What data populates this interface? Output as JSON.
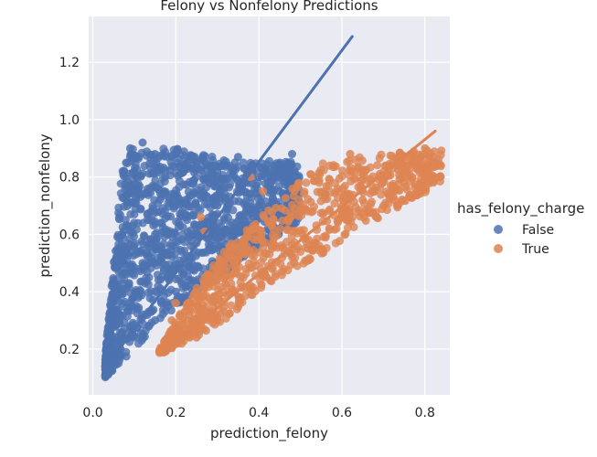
{
  "chart_data": {
    "type": "scatter",
    "title": "Felony vs Nonfelony Predictions",
    "xlabel": "prediction_felony",
    "ylabel": "prediction_nonfelony",
    "xlim": [
      -0.01,
      0.86
    ],
    "ylim": [
      0.04,
      1.36
    ],
    "xticks": [
      0.0,
      0.2,
      0.4,
      0.6,
      0.8
    ],
    "yticks": [
      0.2,
      0.4,
      0.6,
      0.8,
      1.0,
      1.2
    ],
    "xtick_labels": [
      "0.0",
      "0.2",
      "0.4",
      "0.6",
      "0.8"
    ],
    "ytick_labels": [
      "0.2",
      "0.4",
      "0.6",
      "0.8",
      "1.0",
      "1.2"
    ],
    "grid": true,
    "legend": {
      "title": "has_felony_charge",
      "placement": "right",
      "entries": [
        "False",
        "True"
      ]
    },
    "series": [
      {
        "name": "False",
        "color": "#4c72b0",
        "cluster": {
          "x_range": [
            0.03,
            0.5
          ],
          "top_edge": [
            [
              0.03,
              0.18
            ],
            [
              0.07,
              0.82
            ],
            [
              0.09,
              0.9
            ],
            [
              0.2,
              0.9
            ],
            [
              0.35,
              0.85
            ],
            [
              0.47,
              0.86
            ],
            [
              0.55,
              0.8
            ]
          ],
          "bottom_edge": [
            [
              0.03,
              0.1
            ],
            [
              0.1,
              0.2
            ],
            [
              0.2,
              0.35
            ],
            [
              0.3,
              0.45
            ],
            [
              0.4,
              0.55
            ],
            [
              0.5,
              0.65
            ]
          ]
        },
        "points": [
          [
            0.035,
            0.11
          ],
          [
            0.04,
            0.15
          ],
          [
            0.05,
            0.2
          ],
          [
            0.06,
            0.3
          ],
          [
            0.07,
            0.4
          ],
          [
            0.08,
            0.55
          ],
          [
            0.08,
            0.85
          ],
          [
            0.09,
            0.9
          ],
          [
            0.12,
            0.92
          ],
          [
            0.15,
            0.88
          ],
          [
            0.2,
            0.88
          ],
          [
            0.25,
            0.85
          ],
          [
            0.3,
            0.82
          ],
          [
            0.35,
            0.87
          ],
          [
            0.4,
            0.8
          ],
          [
            0.45,
            0.85
          ],
          [
            0.48,
            0.88
          ],
          [
            0.56,
            0.74
          ],
          [
            0.1,
            0.24
          ],
          [
            0.15,
            0.3
          ],
          [
            0.2,
            0.4
          ],
          [
            0.25,
            0.42
          ],
          [
            0.3,
            0.5
          ],
          [
            0.4,
            0.6
          ],
          [
            0.15,
            0.6
          ],
          [
            0.2,
            0.7
          ],
          [
            0.25,
            0.6
          ],
          [
            0.3,
            0.7
          ],
          [
            0.12,
            0.5
          ],
          [
            0.18,
            0.45
          ]
        ],
        "regression": {
          "x": [
            0.03,
            0.625
          ],
          "y": [
            0.135,
            1.29
          ]
        }
      },
      {
        "name": "True",
        "color": "#dd8452",
        "cluster": {
          "x_range": [
            0.16,
            0.84
          ],
          "top_edge": [
            [
              0.16,
              0.2
            ],
            [
              0.25,
              0.42
            ],
            [
              0.35,
              0.6
            ],
            [
              0.45,
              0.72
            ],
            [
              0.55,
              0.85
            ],
            [
              0.7,
              0.88
            ],
            [
              0.84,
              0.9
            ]
          ],
          "bottom_edge": [
            [
              0.16,
              0.18
            ],
            [
              0.3,
              0.28
            ],
            [
              0.4,
              0.4
            ],
            [
              0.5,
              0.48
            ],
            [
              0.6,
              0.58
            ],
            [
              0.7,
              0.66
            ],
            [
              0.84,
              0.78
            ]
          ]
        },
        "points": [
          [
            0.17,
            0.19
          ],
          [
            0.18,
            0.22
          ],
          [
            0.19,
            0.3
          ],
          [
            0.2,
            0.36
          ],
          [
            0.22,
            0.25
          ],
          [
            0.25,
            0.24
          ],
          [
            0.3,
            0.3
          ],
          [
            0.35,
            0.52
          ],
          [
            0.38,
            0.42
          ],
          [
            0.43,
            0.56
          ],
          [
            0.48,
            0.52
          ],
          [
            0.52,
            0.58
          ],
          [
            0.57,
            0.62
          ],
          [
            0.6,
            0.68
          ],
          [
            0.62,
            0.88
          ],
          [
            0.65,
            0.72
          ],
          [
            0.7,
            0.7
          ],
          [
            0.75,
            0.78
          ],
          [
            0.8,
            0.9
          ],
          [
            0.82,
            0.87
          ],
          [
            0.83,
            0.85
          ],
          [
            0.27,
            0.61
          ],
          [
            0.26,
            0.66
          ],
          [
            0.38,
            0.8
          ],
          [
            0.41,
            0.75
          ]
        ],
        "regression": {
          "x": [
            0.16,
            0.825
          ],
          "y": [
            0.18,
            0.96
          ]
        }
      }
    ]
  }
}
